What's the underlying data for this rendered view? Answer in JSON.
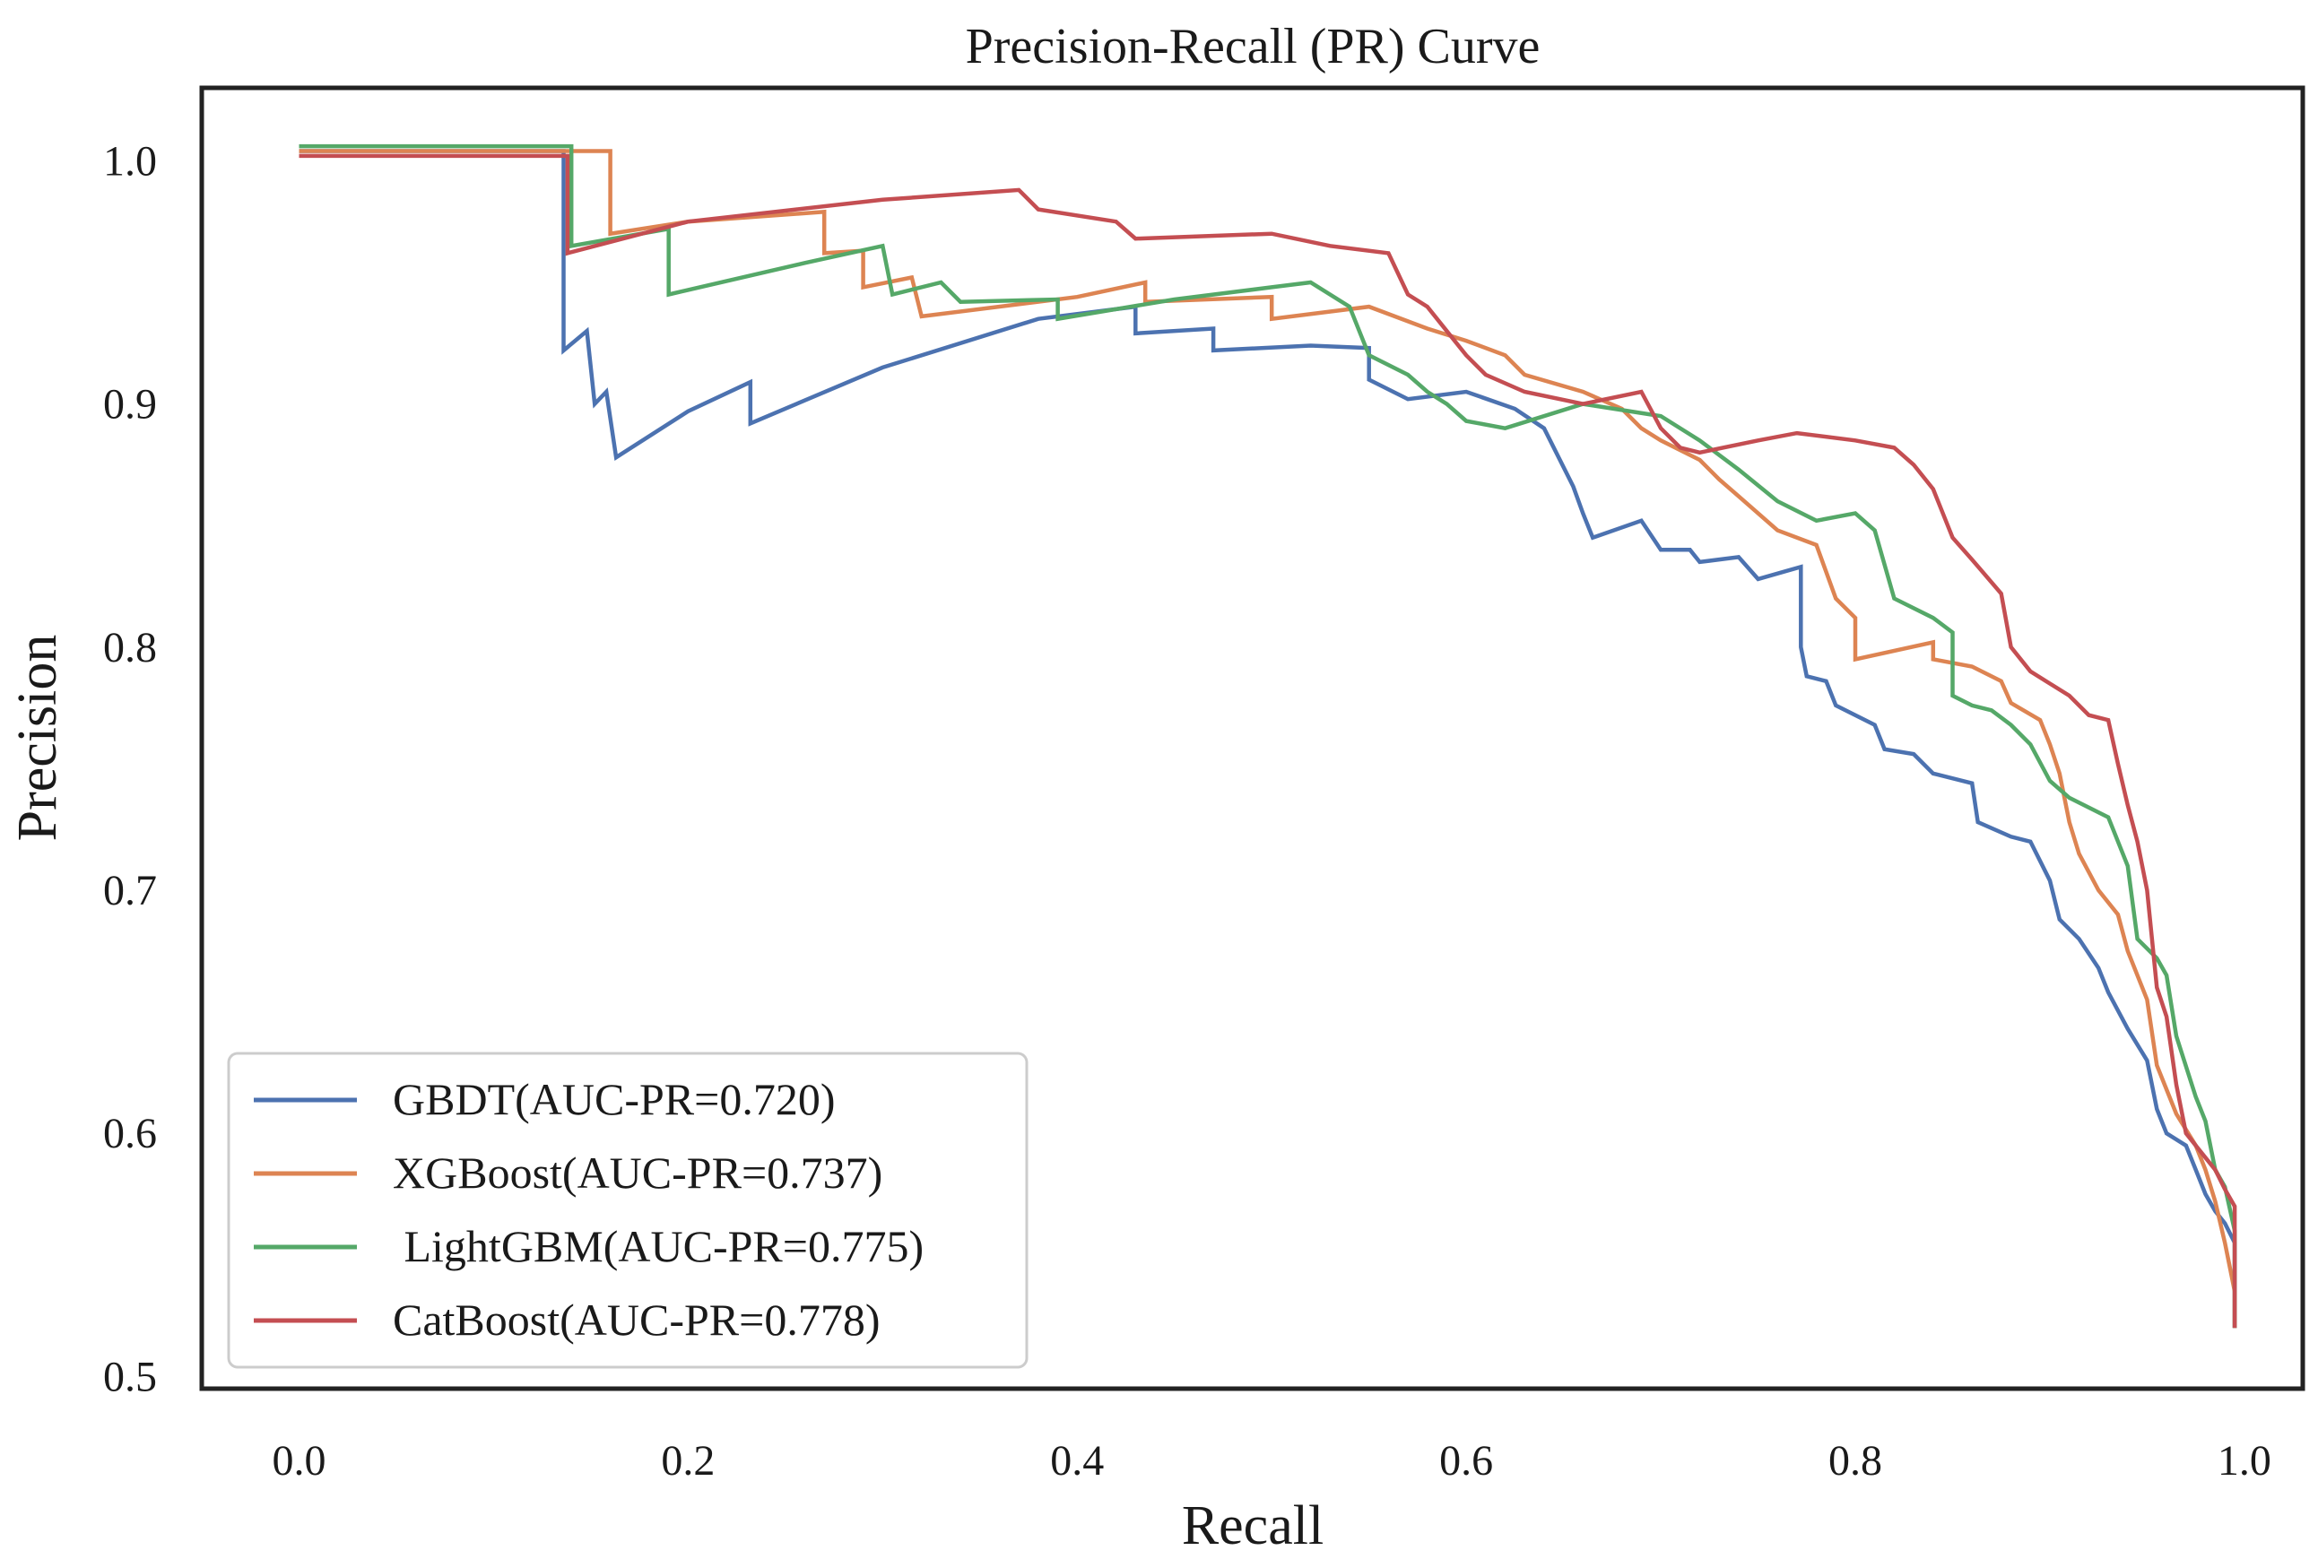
{
  "chart_data": {
    "type": "line",
    "title": "Precision-Recall (PR) Curve",
    "xlabel": "Recall",
    "ylabel": "Precision",
    "xlim": [
      -0.05,
      1.03
    ],
    "ylim": [
      0.495,
      1.03
    ],
    "xticks": [
      0.0,
      0.2,
      0.4,
      0.6,
      0.8,
      1.0
    ],
    "xtick_labels": [
      "0.0",
      "0.2",
      "0.4",
      "0.6",
      "0.8",
      "1.0"
    ],
    "yticks": [
      0.5,
      0.6,
      0.7,
      0.8,
      0.9,
      1.0
    ],
    "ytick_labels": [
      "0.5",
      "0.6",
      "0.7",
      "0.8",
      "0.9",
      "1.0"
    ],
    "grid": false,
    "legend_position": "lower-left",
    "series": [
      {
        "name": "GBDT(AUC-PR=0.720)",
        "color": "#4c72b0",
        "points": [
          [
            0.0,
            1.004
          ],
          [
            0.136,
            1.004
          ],
          [
            0.136,
            0.922
          ],
          [
            0.148,
            0.93
          ],
          [
            0.152,
            0.9
          ],
          [
            0.158,
            0.905
          ],
          [
            0.163,
            0.878
          ],
          [
            0.2,
            0.897
          ],
          [
            0.232,
            0.909
          ],
          [
            0.232,
            0.892
          ],
          [
            0.3,
            0.915
          ],
          [
            0.38,
            0.935
          ],
          [
            0.43,
            0.94
          ],
          [
            0.43,
            0.929
          ],
          [
            0.47,
            0.931
          ],
          [
            0.47,
            0.922
          ],
          [
            0.52,
            0.924
          ],
          [
            0.55,
            0.923
          ],
          [
            0.55,
            0.91
          ],
          [
            0.57,
            0.902
          ],
          [
            0.6,
            0.905
          ],
          [
            0.625,
            0.898
          ],
          [
            0.64,
            0.89
          ],
          [
            0.655,
            0.866
          ],
          [
            0.66,
            0.855
          ],
          [
            0.665,
            0.845
          ],
          [
            0.69,
            0.852
          ],
          [
            0.7,
            0.84
          ],
          [
            0.715,
            0.84
          ],
          [
            0.72,
            0.835
          ],
          [
            0.74,
            0.837
          ],
          [
            0.75,
            0.828
          ],
          [
            0.772,
            0.833
          ],
          [
            0.772,
            0.8
          ],
          [
            0.775,
            0.788
          ],
          [
            0.785,
            0.786
          ],
          [
            0.79,
            0.776
          ],
          [
            0.81,
            0.768
          ],
          [
            0.815,
            0.758
          ],
          [
            0.83,
            0.756
          ],
          [
            0.84,
            0.748
          ],
          [
            0.86,
            0.744
          ],
          [
            0.863,
            0.728
          ],
          [
            0.88,
            0.722
          ],
          [
            0.89,
            0.72
          ],
          [
            0.9,
            0.704
          ],
          [
            0.905,
            0.688
          ],
          [
            0.915,
            0.68
          ],
          [
            0.925,
            0.668
          ],
          [
            0.93,
            0.658
          ],
          [
            0.94,
            0.643
          ],
          [
            0.95,
            0.63
          ],
          [
            0.955,
            0.61
          ],
          [
            0.96,
            0.6
          ],
          [
            0.97,
            0.595
          ],
          [
            0.975,
            0.585
          ],
          [
            0.98,
            0.575
          ],
          [
            0.985,
            0.568
          ],
          [
            0.99,
            0.563
          ],
          [
            0.995,
            0.555
          ],
          [
            0.995,
            0.52
          ]
        ]
      },
      {
        "name": "XGBoost(AUC-PR=0.737)",
        "color": "#dd8452",
        "points": [
          [
            0.0,
            1.004
          ],
          [
            0.16,
            1.004
          ],
          [
            0.16,
            0.97
          ],
          [
            0.2,
            0.975
          ],
          [
            0.27,
            0.979
          ],
          [
            0.27,
            0.962
          ],
          [
            0.29,
            0.963
          ],
          [
            0.29,
            0.948
          ],
          [
            0.315,
            0.952
          ],
          [
            0.32,
            0.936
          ],
          [
            0.4,
            0.944
          ],
          [
            0.435,
            0.95
          ],
          [
            0.435,
            0.942
          ],
          [
            0.5,
            0.944
          ],
          [
            0.5,
            0.935
          ],
          [
            0.55,
            0.94
          ],
          [
            0.58,
            0.931
          ],
          [
            0.6,
            0.926
          ],
          [
            0.62,
            0.92
          ],
          [
            0.63,
            0.912
          ],
          [
            0.66,
            0.905
          ],
          [
            0.68,
            0.898
          ],
          [
            0.69,
            0.89
          ],
          [
            0.7,
            0.885
          ],
          [
            0.72,
            0.877
          ],
          [
            0.73,
            0.869
          ],
          [
            0.74,
            0.862
          ],
          [
            0.75,
            0.855
          ],
          [
            0.76,
            0.848
          ],
          [
            0.78,
            0.842
          ],
          [
            0.79,
            0.82
          ],
          [
            0.8,
            0.812
          ],
          [
            0.8,
            0.795
          ],
          [
            0.84,
            0.802
          ],
          [
            0.84,
            0.795
          ],
          [
            0.86,
            0.792
          ],
          [
            0.875,
            0.786
          ],
          [
            0.88,
            0.777
          ],
          [
            0.895,
            0.77
          ],
          [
            0.9,
            0.76
          ],
          [
            0.905,
            0.748
          ],
          [
            0.91,
            0.728
          ],
          [
            0.915,
            0.715
          ],
          [
            0.925,
            0.7
          ],
          [
            0.935,
            0.69
          ],
          [
            0.94,
            0.675
          ],
          [
            0.95,
            0.655
          ],
          [
            0.955,
            0.628
          ],
          [
            0.965,
            0.608
          ],
          [
            0.975,
            0.595
          ],
          [
            0.98,
            0.585
          ],
          [
            0.985,
            0.572
          ],
          [
            0.99,
            0.555
          ],
          [
            0.995,
            0.535
          ],
          [
            0.995,
            0.52
          ]
        ]
      },
      {
        "name": " LightGBM(AUC-PR=0.775)",
        "color": "#55a868",
        "points": [
          [
            0.0,
            1.006
          ],
          [
            0.14,
            1.006
          ],
          [
            0.14,
            0.965
          ],
          [
            0.19,
            0.972
          ],
          [
            0.19,
            0.945
          ],
          [
            0.26,
            0.958
          ],
          [
            0.3,
            0.965
          ],
          [
            0.305,
            0.945
          ],
          [
            0.33,
            0.95
          ],
          [
            0.34,
            0.942
          ],
          [
            0.39,
            0.943
          ],
          [
            0.39,
            0.935
          ],
          [
            0.45,
            0.943
          ],
          [
            0.5,
            0.948
          ],
          [
            0.52,
            0.95
          ],
          [
            0.54,
            0.94
          ],
          [
            0.55,
            0.92
          ],
          [
            0.57,
            0.912
          ],
          [
            0.58,
            0.905
          ],
          [
            0.59,
            0.9
          ],
          [
            0.6,
            0.893
          ],
          [
            0.62,
            0.89
          ],
          [
            0.66,
            0.9
          ],
          [
            0.7,
            0.895
          ],
          [
            0.72,
            0.885
          ],
          [
            0.74,
            0.873
          ],
          [
            0.76,
            0.86
          ],
          [
            0.78,
            0.852
          ],
          [
            0.8,
            0.855
          ],
          [
            0.81,
            0.848
          ],
          [
            0.82,
            0.82
          ],
          [
            0.84,
            0.812
          ],
          [
            0.85,
            0.806
          ],
          [
            0.85,
            0.78
          ],
          [
            0.86,
            0.776
          ],
          [
            0.87,
            0.774
          ],
          [
            0.88,
            0.768
          ],
          [
            0.89,
            0.76
          ],
          [
            0.9,
            0.745
          ],
          [
            0.91,
            0.738
          ],
          [
            0.93,
            0.73
          ],
          [
            0.94,
            0.71
          ],
          [
            0.945,
            0.68
          ],
          [
            0.955,
            0.672
          ],
          [
            0.96,
            0.665
          ],
          [
            0.965,
            0.64
          ],
          [
            0.975,
            0.615
          ],
          [
            0.98,
            0.605
          ],
          [
            0.985,
            0.585
          ],
          [
            0.99,
            0.578
          ],
          [
            0.995,
            0.56
          ],
          [
            0.995,
            0.52
          ]
        ]
      },
      {
        "name": "CatBoost(AUC-PR=0.778)",
        "color": "#c44e52",
        "points": [
          [
            0.0,
            1.002
          ],
          [
            0.138,
            1.002
          ],
          [
            0.138,
            0.962
          ],
          [
            0.2,
            0.975
          ],
          [
            0.3,
            0.984
          ],
          [
            0.37,
            0.988
          ],
          [
            0.38,
            0.98
          ],
          [
            0.42,
            0.975
          ],
          [
            0.43,
            0.968
          ],
          [
            0.5,
            0.97
          ],
          [
            0.53,
            0.965
          ],
          [
            0.56,
            0.962
          ],
          [
            0.57,
            0.945
          ],
          [
            0.58,
            0.94
          ],
          [
            0.59,
            0.93
          ],
          [
            0.6,
            0.92
          ],
          [
            0.61,
            0.912
          ],
          [
            0.63,
            0.905
          ],
          [
            0.66,
            0.9
          ],
          [
            0.69,
            0.905
          ],
          [
            0.7,
            0.89
          ],
          [
            0.71,
            0.882
          ],
          [
            0.72,
            0.88
          ],
          [
            0.75,
            0.885
          ],
          [
            0.77,
            0.888
          ],
          [
            0.8,
            0.885
          ],
          [
            0.82,
            0.882
          ],
          [
            0.83,
            0.875
          ],
          [
            0.84,
            0.865
          ],
          [
            0.85,
            0.845
          ],
          [
            0.86,
            0.836
          ],
          [
            0.875,
            0.822
          ],
          [
            0.88,
            0.8
          ],
          [
            0.89,
            0.79
          ],
          [
            0.9,
            0.785
          ],
          [
            0.91,
            0.78
          ],
          [
            0.92,
            0.772
          ],
          [
            0.93,
            0.77
          ],
          [
            0.935,
            0.752
          ],
          [
            0.94,
            0.735
          ],
          [
            0.945,
            0.72
          ],
          [
            0.95,
            0.7
          ],
          [
            0.955,
            0.66
          ],
          [
            0.96,
            0.648
          ],
          [
            0.965,
            0.62
          ],
          [
            0.97,
            0.6
          ],
          [
            0.98,
            0.59
          ],
          [
            0.985,
            0.585
          ],
          [
            0.99,
            0.577
          ],
          [
            0.995,
            0.57
          ],
          [
            0.995,
            0.52
          ]
        ]
      }
    ]
  }
}
